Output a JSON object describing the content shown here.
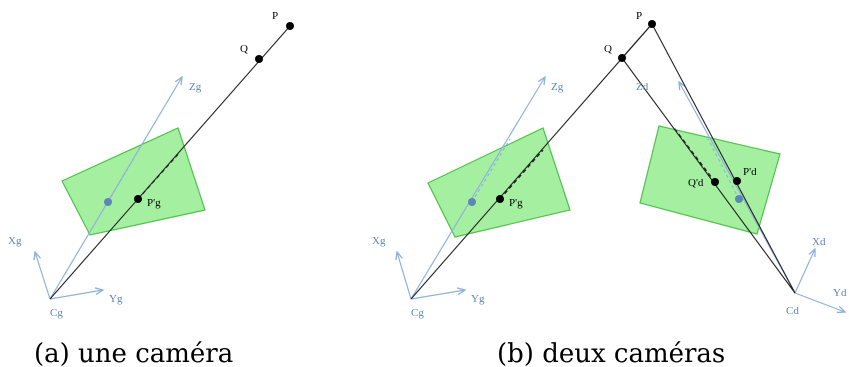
{
  "panel_a": {
    "caption": "(a) une caméra",
    "points": {
      "p": "P",
      "q": "Q",
      "p_img": "P'g"
    },
    "axes": {
      "x": "Xg",
      "y": "Yg",
      "z": "Zg",
      "center": "Cg"
    }
  },
  "panel_b": {
    "caption": "(b) deux caméras",
    "points": {
      "p": "P",
      "q": "Q",
      "pg_img": "P'g",
      "pd_img": "P'd",
      "qd_img": "Q'd"
    },
    "left_axes": {
      "x": "Xg",
      "y": "Yg",
      "z": "Zg",
      "center": "Cg"
    },
    "right_axes": {
      "x": "Xd",
      "y": "Yd",
      "z": "Zd",
      "center": "Cd"
    }
  },
  "colors": {
    "plane_fill": "#a4f0a0",
    "plane_stroke": "#4fc24b",
    "axis": "#8fb2db",
    "axis_label": "#5a86b8"
  }
}
